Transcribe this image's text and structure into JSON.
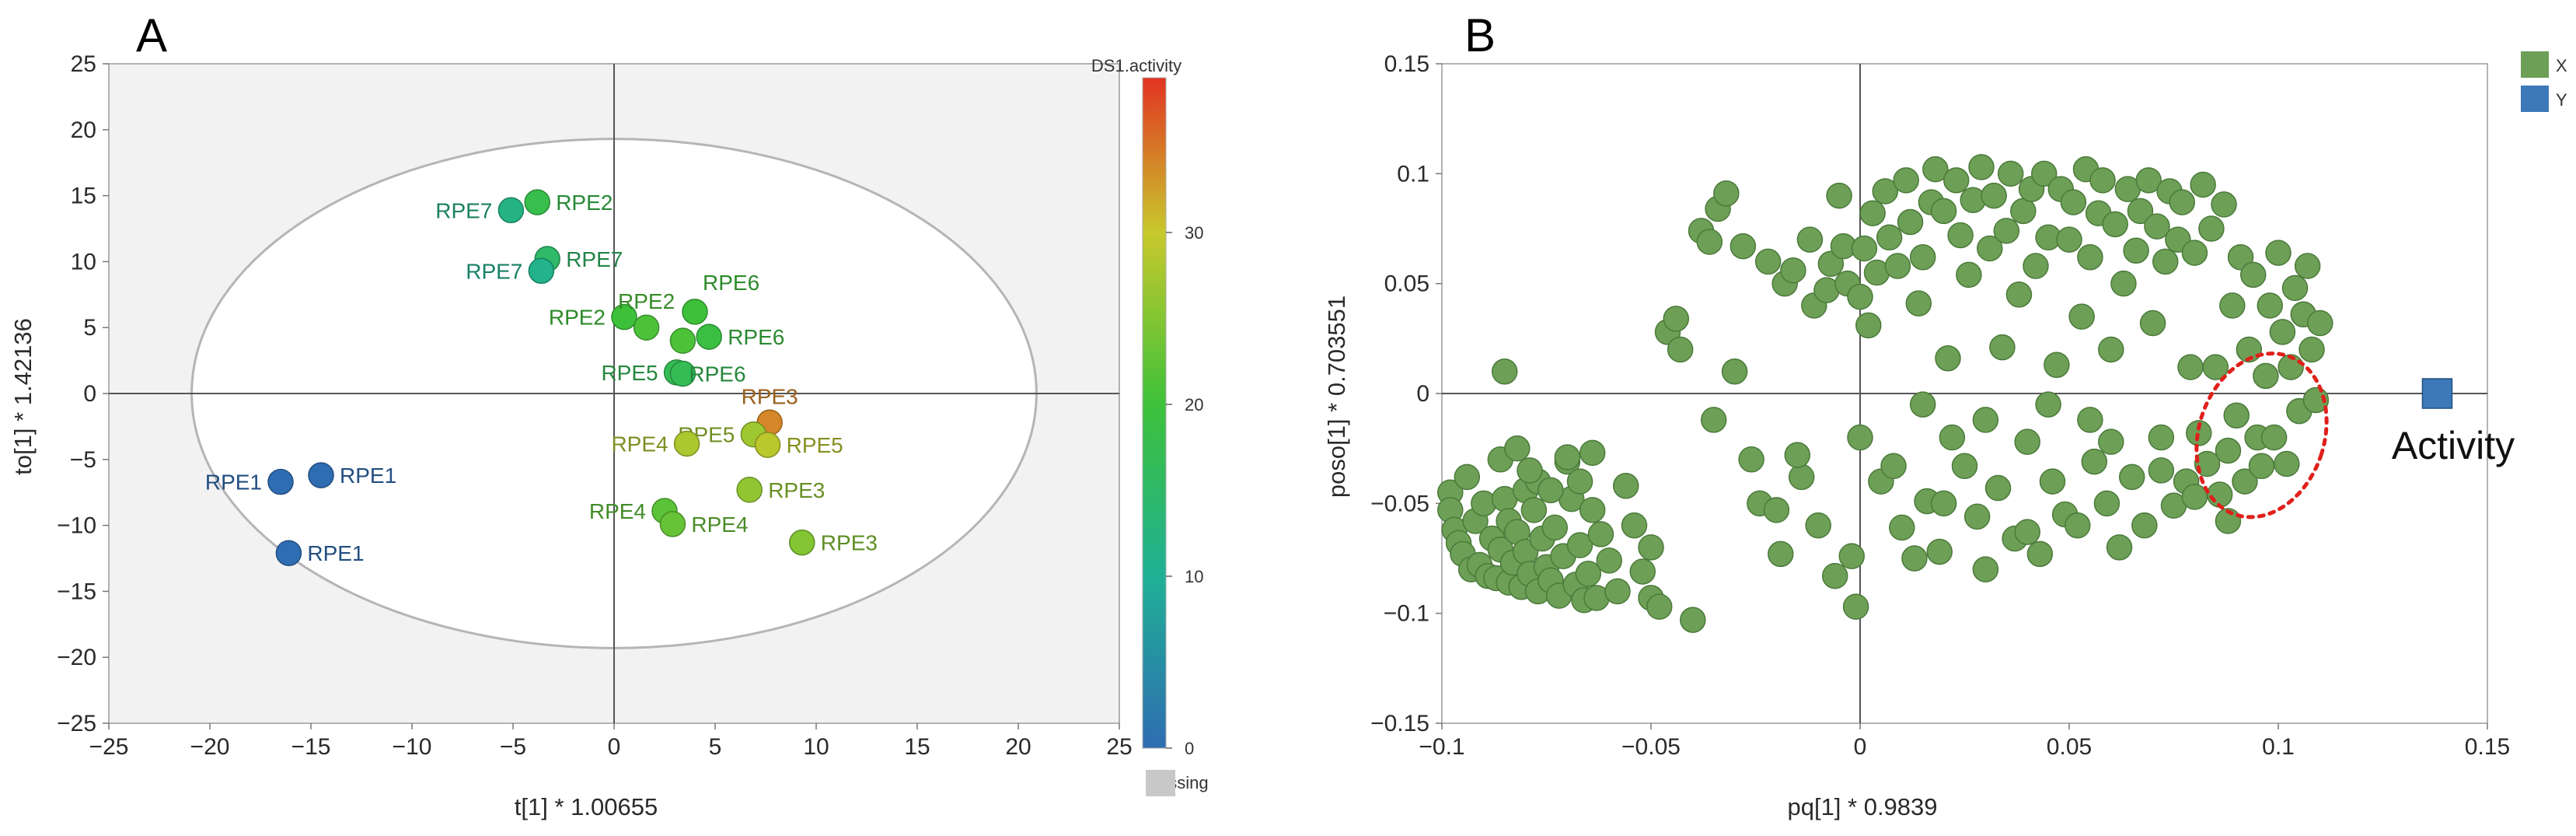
{
  "chart_data": [
    {
      "type": "scatter",
      "panel_label": "A",
      "xlabel": "t[1] * 1.00655",
      "ylabel": "to[1] * 1.42136",
      "xlim": [
        -25,
        25
      ],
      "ylim": [
        -25,
        25
      ],
      "xticks": [
        "−25",
        "−20",
        "−15",
        "−10",
        "−5",
        "0",
        "5",
        "10",
        "15",
        "20",
        "25"
      ],
      "yticks": [
        "25",
        "20",
        "15",
        "10",
        "5",
        "0",
        "−5",
        "−10",
        "−15",
        "−20",
        "−25"
      ],
      "confidence_ellipse": {
        "center": [
          0,
          0
        ],
        "rx": 20.9,
        "ry": 19.3
      },
      "colorbar": {
        "title": "DS1.activity",
        "range": [
          0,
          39
        ],
        "ticks": [
          "30",
          "20",
          "10",
          "0"
        ],
        "tick_values": [
          30,
          20,
          10,
          0
        ],
        "missing_label": "Missing",
        "colors": {
          "0": "#2f6db2",
          "10": "#1fb095",
          "20": "#3ec13a",
          "30": "#c8c92c",
          "39": "#e23322"
        }
      },
      "points": [
        {
          "x": -16.5,
          "y": -6.7,
          "label": "RPE1",
          "activity": 0,
          "label_side": "left"
        },
        {
          "x": -14.5,
          "y": -6.2,
          "label": "RPE1",
          "activity": 0,
          "label_side": "right"
        },
        {
          "x": -16.1,
          "y": -12.1,
          "label": "RPE1",
          "activity": 0,
          "label_side": "right"
        },
        {
          "x": -5.1,
          "y": 13.9,
          "label": "RPE7",
          "activity": 12,
          "label_side": "left"
        },
        {
          "x": -3.8,
          "y": 14.5,
          "label": "RPE2",
          "activity": 18,
          "label_side": "right"
        },
        {
          "x": -3.3,
          "y": 10.2,
          "label": "RPE7",
          "activity": 15,
          "label_side": "right"
        },
        {
          "x": -3.6,
          "y": 9.3,
          "label": "RPE7",
          "activity": 11,
          "label_side": "left"
        },
        {
          "x": 0.5,
          "y": 5.8,
          "label": "RPE2",
          "activity": 20,
          "label_side": "left"
        },
        {
          "x": 1.6,
          "y": 5.0,
          "label": "RPE2",
          "activity": 21,
          "label_side": "above"
        },
        {
          "x": 4.0,
          "y": 6.2,
          "label": "RPE6",
          "activity": 20,
          "label_side": "above-right"
        },
        {
          "x": 3.4,
          "y": 4.0,
          "label": "",
          "activity": 21,
          "label_side": "none"
        },
        {
          "x": 4.7,
          "y": 4.3,
          "label": "RPE6",
          "activity": 19,
          "label_side": "right"
        },
        {
          "x": 3.1,
          "y": 1.6,
          "label": "RPE5",
          "activity": 17,
          "label_side": "left"
        },
        {
          "x": 3.4,
          "y": 1.5,
          "label": "RPE6",
          "activity": 17,
          "label_side": "right-tight"
        },
        {
          "x": 7.7,
          "y": -2.2,
          "label": "RPE3",
          "activity": 34,
          "label_side": "above"
        },
        {
          "x": 6.9,
          "y": -3.1,
          "label": "RPE5",
          "activity": 27,
          "label_side": "left"
        },
        {
          "x": 7.6,
          "y": -3.9,
          "label": "RPE5",
          "activity": 29,
          "label_side": "right"
        },
        {
          "x": 3.6,
          "y": -3.8,
          "label": "RPE4",
          "activity": 28,
          "label_side": "left"
        },
        {
          "x": 6.7,
          "y": -7.3,
          "label": "RPE3",
          "activity": 26,
          "label_side": "right"
        },
        {
          "x": 2.5,
          "y": -8.9,
          "label": "RPE4",
          "activity": 22,
          "label_side": "left"
        },
        {
          "x": 2.9,
          "y": -9.9,
          "label": "RPE4",
          "activity": 23,
          "label_side": "right"
        },
        {
          "x": 9.3,
          "y": -11.3,
          "label": "RPE3",
          "activity": 25,
          "label_side": "right"
        }
      ]
    },
    {
      "type": "scatter",
      "panel_label": "B",
      "xlabel": "pq[1] * 0.9839",
      "ylabel": "poso[1] * 0.703551",
      "xlim": [
        -0.1,
        0.15
      ],
      "ylim": [
        -0.15,
        0.15
      ],
      "xticks": [
        "−0.1",
        "−0.05",
        "0",
        "0.05",
        "0.1",
        "0.15"
      ],
      "yticks": [
        "0.15",
        "0.1",
        "0.05",
        "0",
        "−0.05",
        "−0.1",
        "−0.15"
      ],
      "legend": [
        {
          "name": "X",
          "color": "#6d9f57"
        },
        {
          "name": "Y",
          "color": "#3d78b8"
        }
      ],
      "annotation": {
        "text": "Activity",
        "near_y_point": true
      },
      "highlight_ellipse": {
        "center": [
          0.096,
          -0.019
        ],
        "rx": 0.015,
        "ry": 0.038,
        "rotation_deg": 18,
        "color": "#e0201b"
      },
      "y_points": [
        [
          0.138,
          0.0
        ]
      ],
      "x_points": [
        [
          -0.098,
          -0.045
        ],
        [
          -0.098,
          -0.053
        ],
        [
          -0.097,
          -0.062
        ],
        [
          -0.096,
          -0.068
        ],
        [
          -0.095,
          -0.073
        ],
        [
          -0.094,
          -0.038
        ],
        [
          -0.093,
          -0.08
        ],
        [
          -0.092,
          -0.058
        ],
        [
          -0.091,
          -0.078
        ],
        [
          -0.09,
          -0.05
        ],
        [
          -0.089,
          -0.083
        ],
        [
          -0.088,
          -0.066
        ],
        [
          -0.087,
          -0.084
        ],
        [
          -0.086,
          -0.071
        ],
        [
          -0.086,
          -0.03
        ],
        [
          -0.085,
          -0.048
        ],
        [
          -0.084,
          -0.058
        ],
        [
          -0.084,
          -0.086
        ],
        [
          -0.083,
          -0.077
        ],
        [
          -0.082,
          -0.063
        ],
        [
          -0.081,
          -0.088
        ],
        [
          -0.08,
          -0.044
        ],
        [
          -0.08,
          -0.072
        ],
        [
          -0.079,
          -0.082
        ],
        [
          -0.078,
          -0.053
        ],
        [
          -0.077,
          -0.04
        ],
        [
          -0.077,
          -0.09
        ],
        [
          -0.076,
          -0.066
        ],
        [
          -0.075,
          -0.079
        ],
        [
          -0.074,
          -0.085
        ],
        [
          -0.073,
          -0.061
        ],
        [
          -0.072,
          -0.092
        ],
        [
          -0.071,
          -0.074
        ],
        [
          -0.07,
          -0.031
        ],
        [
          -0.069,
          -0.048
        ],
        [
          -0.068,
          -0.087
        ],
        [
          -0.067,
          -0.069
        ],
        [
          -0.066,
          -0.094
        ],
        [
          -0.065,
          -0.082
        ],
        [
          -0.064,
          -0.053
        ],
        [
          -0.063,
          -0.093
        ],
        [
          -0.062,
          -0.064
        ],
        [
          -0.06,
          -0.076
        ],
        [
          -0.058,
          -0.09
        ],
        [
          -0.056,
          -0.042
        ],
        [
          -0.054,
          -0.06
        ],
        [
          -0.052,
          -0.081
        ],
        [
          -0.05,
          -0.093
        ],
        [
          -0.085,
          0.01
        ],
        [
          -0.082,
          -0.025
        ],
        [
          -0.079,
          -0.035
        ],
        [
          -0.074,
          -0.044
        ],
        [
          -0.07,
          -0.029
        ],
        [
          -0.067,
          -0.04
        ],
        [
          -0.064,
          -0.027
        ],
        [
          -0.048,
          -0.097
        ],
        [
          -0.046,
          0.028
        ],
        [
          -0.044,
          0.034
        ],
        [
          -0.043,
          0.02
        ],
        [
          -0.04,
          -0.103
        ],
        [
          -0.038,
          0.074
        ],
        [
          -0.036,
          0.069
        ],
        [
          -0.034,
          0.084
        ],
        [
          -0.032,
          0.091
        ],
        [
          -0.03,
          0.01
        ],
        [
          -0.028,
          0.067
        ],
        [
          -0.026,
          -0.03
        ],
        [
          -0.024,
          -0.05
        ],
        [
          -0.022,
          0.06
        ],
        [
          -0.02,
          -0.053
        ],
        [
          -0.019,
          -0.073
        ],
        [
          -0.018,
          0.05
        ],
        [
          -0.016,
          0.056
        ],
        [
          -0.014,
          -0.038
        ],
        [
          -0.012,
          0.07
        ],
        [
          -0.011,
          0.04
        ],
        [
          -0.01,
          -0.06
        ],
        [
          -0.008,
          0.047
        ],
        [
          -0.007,
          0.059
        ],
        [
          -0.006,
          -0.083
        ],
        [
          -0.005,
          0.09
        ],
        [
          -0.004,
          0.067
        ],
        [
          -0.003,
          0.05
        ],
        [
          -0.002,
          -0.074
        ],
        [
          -0.001,
          -0.097
        ],
        [
          0.0,
          0.044
        ],
        [
          0.001,
          0.066
        ],
        [
          0.002,
          0.031
        ],
        [
          0.003,
          0.082
        ],
        [
          0.004,
          0.055
        ],
        [
          0.005,
          -0.04
        ],
        [
          0.006,
          0.092
        ],
        [
          0.007,
          0.071
        ],
        [
          0.008,
          -0.033
        ],
        [
          0.009,
          0.058
        ],
        [
          0.01,
          -0.061
        ],
        [
          0.011,
          0.097
        ],
        [
          0.012,
          0.078
        ],
        [
          0.013,
          -0.075
        ],
        [
          0.014,
          0.041
        ],
        [
          0.015,
          0.062
        ],
        [
          0.016,
          -0.049
        ],
        [
          0.017,
          0.087
        ],
        [
          0.018,
          0.102
        ],
        [
          0.019,
          -0.072
        ],
        [
          0.02,
          0.083
        ],
        [
          0.021,
          0.016
        ],
        [
          0.022,
          -0.02
        ],
        [
          0.023,
          0.097
        ],
        [
          0.024,
          0.072
        ],
        [
          0.025,
          -0.033
        ],
        [
          0.026,
          0.054
        ],
        [
          0.027,
          0.088
        ],
        [
          0.028,
          -0.056
        ],
        [
          0.029,
          0.103
        ],
        [
          0.03,
          -0.08
        ],
        [
          0.031,
          0.066
        ],
        [
          0.032,
          0.09
        ],
        [
          0.033,
          -0.043
        ],
        [
          0.034,
          0.021
        ],
        [
          0.035,
          0.074
        ],
        [
          0.036,
          0.1
        ],
        [
          0.037,
          -0.066
        ],
        [
          0.038,
          0.045
        ],
        [
          0.039,
          0.083
        ],
        [
          0.04,
          -0.022
        ],
        [
          0.041,
          0.093
        ],
        [
          0.042,
          0.058
        ],
        [
          0.043,
          -0.073
        ],
        [
          0.044,
          0.1
        ],
        [
          0.045,
          0.071
        ],
        [
          0.046,
          -0.04
        ],
        [
          0.047,
          0.013
        ],
        [
          0.048,
          0.093
        ],
        [
          0.049,
          -0.055
        ],
        [
          0.05,
          0.07
        ],
        [
          0.051,
          0.087
        ],
        [
          0.052,
          -0.06
        ],
        [
          0.053,
          0.035
        ],
        [
          0.054,
          0.102
        ],
        [
          0.055,
          0.062
        ],
        [
          0.056,
          -0.031
        ],
        [
          0.057,
          0.082
        ],
        [
          0.058,
          0.097
        ],
        [
          0.059,
          -0.05
        ],
        [
          0.06,
          0.02
        ],
        [
          0.061,
          0.077
        ],
        [
          0.062,
          -0.07
        ],
        [
          0.063,
          0.05
        ],
        [
          0.064,
          0.093
        ],
        [
          0.065,
          -0.038
        ],
        [
          0.066,
          0.065
        ],
        [
          0.067,
          0.083
        ],
        [
          0.068,
          -0.06
        ],
        [
          0.069,
          0.097
        ],
        [
          0.07,
          0.032
        ],
        [
          0.071,
          0.076
        ],
        [
          0.072,
          -0.02
        ],
        [
          0.073,
          0.06
        ],
        [
          0.074,
          0.092
        ],
        [
          0.075,
          -0.051
        ],
        [
          0.076,
          0.07
        ],
        [
          0.077,
          0.087
        ],
        [
          0.078,
          -0.04
        ],
        [
          0.079,
          0.012
        ],
        [
          0.08,
          0.064
        ],
        [
          0.081,
          -0.018
        ],
        [
          0.082,
          0.095
        ],
        [
          0.083,
          -0.032
        ],
        [
          0.084,
          0.075
        ],
        [
          0.085,
          0.012
        ],
        [
          0.086,
          -0.046
        ],
        [
          0.087,
          0.086
        ],
        [
          0.088,
          -0.026
        ],
        [
          0.089,
          0.04
        ],
        [
          0.09,
          -0.01
        ],
        [
          0.091,
          0.062
        ],
        [
          0.092,
          -0.04
        ],
        [
          0.093,
          0.02
        ],
        [
          0.094,
          0.054
        ],
        [
          0.095,
          -0.02
        ],
        [
          0.096,
          -0.033
        ],
        [
          0.097,
          0.008
        ],
        [
          0.098,
          0.04
        ],
        [
          0.099,
          -0.02
        ],
        [
          0.1,
          0.064
        ],
        [
          0.101,
          0.028
        ],
        [
          0.102,
          -0.032
        ],
        [
          0.103,
          0.012
        ],
        [
          0.104,
          0.048
        ],
        [
          0.105,
          -0.008
        ],
        [
          0.106,
          0.036
        ],
        [
          0.107,
          0.058
        ],
        [
          0.108,
          0.02
        ],
        [
          0.109,
          -0.003
        ],
        [
          0.11,
          0.032
        ],
        [
          0.088,
          -0.058
        ],
        [
          0.08,
          -0.047
        ],
        [
          0.072,
          -0.035
        ],
        [
          0.06,
          -0.022
        ],
        [
          0.04,
          -0.063
        ],
        [
          0.02,
          -0.05
        ],
        [
          0.0,
          -0.02
        ],
        [
          -0.015,
          -0.028
        ],
        [
          -0.035,
          -0.012
        ],
        [
          -0.05,
          -0.07
        ],
        [
          0.015,
          -0.005
        ],
        [
          0.03,
          -0.012
        ],
        [
          0.045,
          -0.005
        ],
        [
          0.055,
          -0.012
        ]
      ]
    }
  ]
}
